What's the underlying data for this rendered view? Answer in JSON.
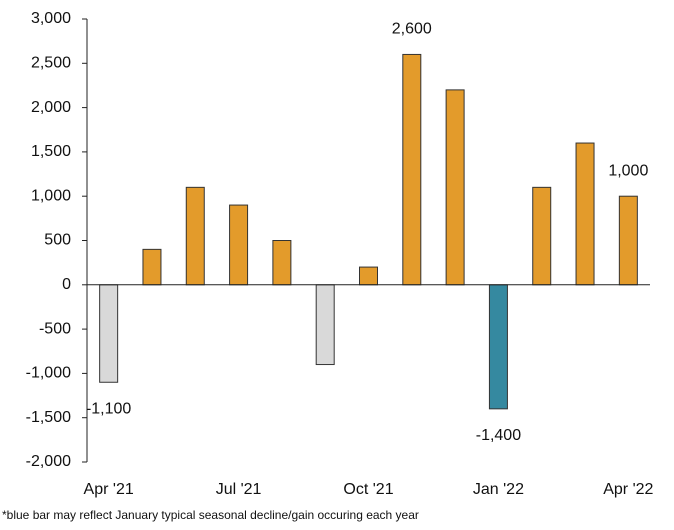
{
  "chart_data": {
    "type": "bar",
    "categories": [
      "Apr '21",
      null,
      null,
      "Jul '21",
      null,
      null,
      "Oct '21",
      null,
      null,
      "Jan '22",
      null,
      null,
      "Apr '22"
    ],
    "values": [
      -1100,
      400,
      1100,
      900,
      500,
      -900,
      200,
      2600,
      2200,
      -1400,
      1100,
      1600,
      1000
    ],
    "value_labels": [
      "-1,100",
      null,
      null,
      null,
      null,
      null,
      null,
      "2,600",
      null,
      "-1,400",
      null,
      null,
      "1,000"
    ],
    "colors": [
      "#d9d9d9",
      "#e39b2b",
      "#e39b2b",
      "#e39b2b",
      "#e39b2b",
      "#d9d9d9",
      "#e39b2b",
      "#e39b2b",
      "#e39b2b",
      "#3589a0",
      "#e39b2b",
      "#e39b2b",
      "#e39b2b"
    ],
    "ylim": [
      -2000,
      3000
    ],
    "yticks": [
      {
        "value": -2000,
        "label": "-2,000"
      },
      {
        "value": -1500,
        "label": "-1,500"
      },
      {
        "value": -1000,
        "label": "-1,000"
      },
      -500,
      0,
      500,
      {
        "value": 1000,
        "label": "1,000"
      },
      {
        "value": 1500,
        "label": "1,500"
      },
      {
        "value": 2000,
        "label": "2,000"
      },
      {
        "value": 2500,
        "label": "2,500"
      },
      {
        "value": 3000,
        "label": "3,000"
      }
    ],
    "grid": false,
    "footnote": "*blue bar may reflect January typical seasonal decline/gain occuring each year"
  }
}
